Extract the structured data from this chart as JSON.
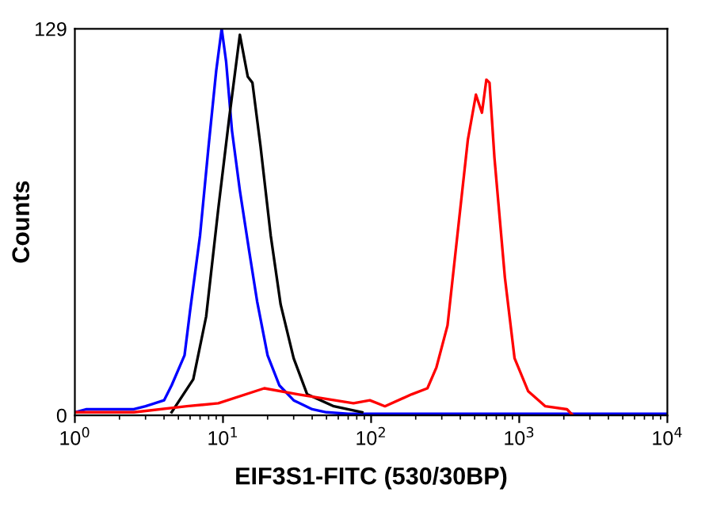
{
  "chart_data": {
    "type": "line",
    "xlabel": "EIF3S1-FITC (530/30BP)",
    "ylabel": "Counts",
    "log": "x",
    "xlim": [
      1,
      10000
    ],
    "ylim": [
      0,
      129
    ],
    "xticks": [
      {
        "value": 1,
        "label": "10$^{0}$"
      },
      {
        "value": 10,
        "label": "10$^{1}$"
      },
      {
        "value": 100,
        "label": "10$^{2}$"
      },
      {
        "value": 1000,
        "label": "10$^{3}$"
      },
      {
        "value": 10000,
        "label": "10$^{4}$"
      }
    ],
    "yticks": [
      0,
      129
    ],
    "grid": false,
    "marker": "none",
    "line_style": "solid",
    "series": [
      {
        "color": "#0000ff",
        "x": [
          1,
          1.2,
          2,
          2.5,
          3,
          4,
          4.5,
          5.5,
          6,
          7,
          8,
          9,
          9.8,
          10.5,
          11.5,
          13,
          15,
          17,
          20,
          24,
          30,
          40,
          50,
          70,
          10000
        ],
        "values": [
          1,
          2,
          2,
          2,
          3,
          5,
          10,
          20,
          35,
          60,
          90,
          115,
          129,
          118,
          95,
          75,
          55,
          38,
          20,
          10,
          5,
          2,
          1,
          0.5,
          0.5
        ]
      },
      {
        "color": "#000000",
        "x": [
          4.5,
          6.3,
          7.7,
          9.3,
          11,
          13,
          14.7,
          15.8,
          17.9,
          21,
          24.5,
          30,
          37,
          56,
          87
        ],
        "values": [
          1,
          12,
          33,
          69,
          99,
          127,
          113,
          111,
          90,
          60,
          37,
          19,
          7,
          3,
          1
        ]
      },
      {
        "color": "#ff0000",
        "x": [
          1,
          2.5,
          5.7,
          9.3,
          19,
          32,
          76,
          98,
          124,
          188,
          240,
          276,
          328,
          388,
          450,
          510,
          560,
          600,
          630,
          680,
          800,
          930,
          1150,
          1500,
          2100,
          2300
        ],
        "values": [
          1,
          1,
          3,
          4,
          9,
          7,
          4,
          5,
          3,
          7,
          9,
          16,
          30,
          63,
          92,
          107,
          101,
          112,
          111,
          86,
          46,
          19,
          8,
          3,
          2,
          0
        ]
      }
    ]
  }
}
